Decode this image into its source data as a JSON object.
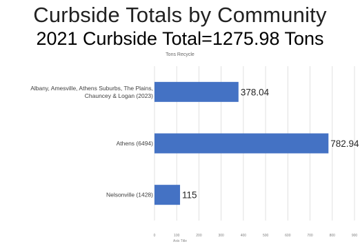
{
  "header": {
    "title": "Curbside Totals by Community",
    "subtitle": "2021 Curbside Total=1275.98 Tons"
  },
  "chart_data": {
    "type": "bar",
    "orientation": "horizontal",
    "title": "Tons Recycle",
    "xlabel": "Axis Title",
    "ylabel": "",
    "categories": [
      [
        "Albany, Amesville, Athens Suburbs, The Plains,",
        "Chauncey & Logan (2023)"
      ],
      [
        "Athens (6494)"
      ],
      [
        "Nelsonville (1428)"
      ]
    ],
    "values": [
      378.04,
      782.94,
      115
    ],
    "value_labels": [
      "378.04",
      "782.94",
      "115"
    ],
    "xlim": [
      0,
      900
    ],
    "xticks": [
      0,
      100,
      200,
      300,
      400,
      500,
      600,
      700,
      800,
      900
    ],
    "grid": "vertical",
    "bar_color": "#4472C4",
    "grid_color": "#d9d9d9"
  }
}
